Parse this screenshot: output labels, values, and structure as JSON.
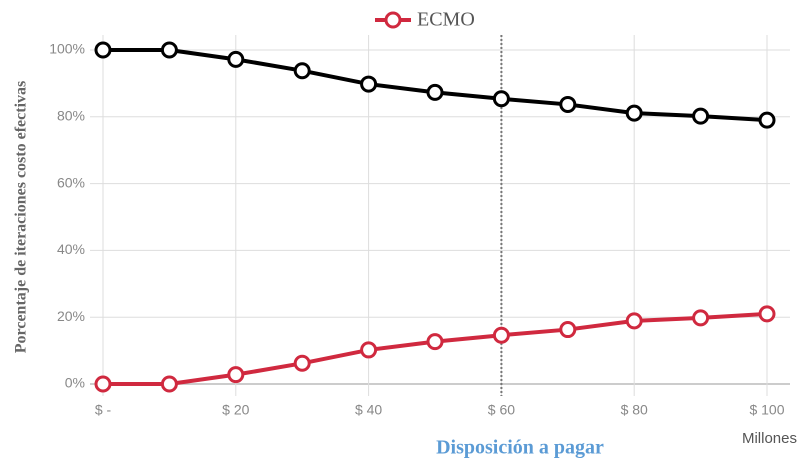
{
  "chart_data": {
    "type": "line",
    "x_label": "Disposición a pagar",
    "y_label": "Porcentaje de iteraciones costo efectivas",
    "x_unit_label": "Millones",
    "x": [
      0,
      10,
      20,
      30,
      40,
      50,
      60,
      70,
      80,
      90,
      100
    ],
    "series": [
      {
        "color": "#000000",
        "values": [
          100,
          100,
          97.2,
          93.8,
          89.8,
          87.3,
          85.4,
          83.7,
          81.1,
          80.2,
          79
        ]
      },
      {
        "name": "ECMO",
        "color": "#d0293f",
        "values": [
          0,
          0,
          2.8,
          6.2,
          10.2,
          12.7,
          14.6,
          16.3,
          18.9,
          19.8,
          21
        ]
      }
    ],
    "xlim": [
      0,
      100
    ],
    "xticks": [
      {
        "value": 0,
        "label": "$ -"
      },
      {
        "value": 20,
        "label": "$ 20"
      },
      {
        "value": 40,
        "label": "$ 40"
      },
      {
        "value": 60,
        "label": "$ 60"
      },
      {
        "value": 80,
        "label": "$ 80"
      },
      {
        "value": 100,
        "label": "$ 100"
      }
    ],
    "ylim": [
      0,
      100
    ],
    "yticks": [
      {
        "value": 0,
        "label": "0%"
      },
      {
        "value": 20,
        "label": "20%"
      },
      {
        "value": 40,
        "label": "40%"
      },
      {
        "value": 60,
        "label": "60%"
      },
      {
        "value": 80,
        "label": "80%"
      },
      {
        "value": 100,
        "label": "100%"
      }
    ],
    "reference_x": 60,
    "grid": true,
    "legend": "top"
  }
}
